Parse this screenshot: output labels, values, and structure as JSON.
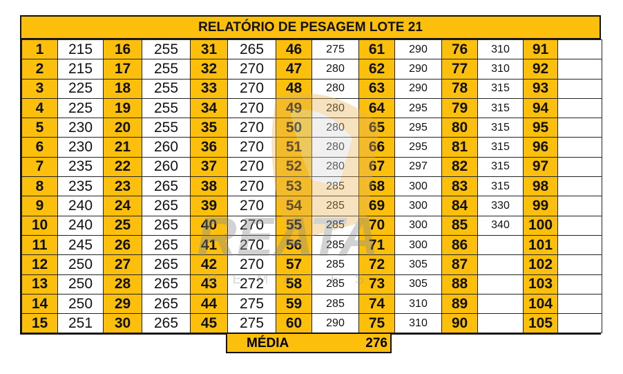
{
  "title": "RELATÓRIO DE PESAGEM LOTE  21",
  "columns": [
    {
      "numbers": [
        1,
        2,
        3,
        4,
        5,
        6,
        7,
        8,
        9,
        10,
        11,
        12,
        13,
        14,
        15
      ],
      "weights": [
        "215",
        "215",
        "225",
        "225",
        "230",
        "230",
        "235",
        "235",
        "240",
        "240",
        "245",
        "250",
        "250",
        "250",
        "251"
      ]
    },
    {
      "numbers": [
        16,
        17,
        18,
        19,
        20,
        21,
        22,
        23,
        24,
        25,
        26,
        27,
        28,
        29,
        30
      ],
      "weights": [
        "255",
        "255",
        "255",
        "255",
        "255",
        "260",
        "260",
        "265",
        "265",
        "265",
        "265",
        "265",
        "265",
        "265",
        "265"
      ]
    },
    {
      "numbers": [
        31,
        32,
        33,
        34,
        35,
        36,
        37,
        38,
        39,
        40,
        41,
        42,
        43,
        44,
        45
      ],
      "weights": [
        "265",
        "270",
        "270",
        "270",
        "270",
        "270",
        "270",
        "270",
        "270",
        "270",
        "270",
        "270",
        "272",
        "275",
        "275"
      ]
    },
    {
      "numbers": [
        46,
        47,
        48,
        49,
        50,
        51,
        52,
        53,
        54,
        55,
        56,
        57,
        58,
        59,
        60
      ],
      "weights": [
        "275",
        "280",
        "280",
        "280",
        "280",
        "280",
        "280",
        "285",
        "285",
        "285",
        "285",
        "285",
        "285",
        "285",
        "290"
      ]
    },
    {
      "numbers": [
        61,
        62,
        63,
        64,
        65,
        66,
        67,
        68,
        69,
        70,
        71,
        72,
        73,
        74,
        75
      ],
      "weights": [
        "290",
        "290",
        "290",
        "295",
        "295",
        "295",
        "297",
        "300",
        "300",
        "300",
        "300",
        "305",
        "305",
        "310",
        "310"
      ]
    },
    {
      "numbers": [
        76,
        77,
        78,
        79,
        80,
        81,
        82,
        83,
        84,
        85,
        86,
        87,
        88,
        89,
        90
      ],
      "weights": [
        "310",
        "310",
        "315",
        "315",
        "315",
        "315",
        "315",
        "315",
        "330",
        "340",
        "",
        "",
        "",
        "",
        ""
      ]
    },
    {
      "numbers": [
        91,
        92,
        93,
        94,
        95,
        96,
        97,
        98,
        99,
        100,
        101,
        102,
        103,
        104,
        105
      ],
      "weights": [
        "",
        "",
        "",
        "",
        "",
        "",
        "",
        "",
        "",
        "",
        "",
        "",
        "",
        "",
        ""
      ]
    }
  ],
  "summary": {
    "label": "MÉDIA",
    "value": "276"
  },
  "watermark": {
    "logo_text": "REATA",
    "sub_text": "REMATES"
  },
  "colors": {
    "header": "#fbbf0c",
    "number_cell": "#fbbf0c",
    "border": "#111111"
  }
}
